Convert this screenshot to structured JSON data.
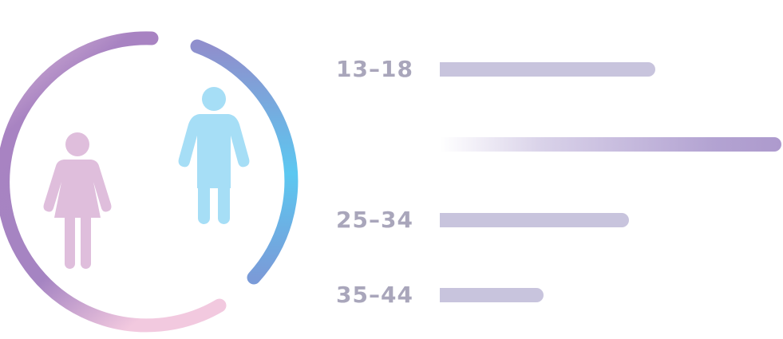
{
  "chart_data": {
    "type": "bar",
    "orientation": "horizontal",
    "categories": [
      "13-18",
      "",
      "25-34",
      "35-44"
    ],
    "category_labels": [
      "13–18",
      "",
      "25–34",
      "35–44"
    ],
    "values": [
      58,
      92,
      51,
      28
    ],
    "xlim": [
      0,
      92
    ],
    "highlighted_index": 1,
    "colors": {
      "bar": "#c8c4dd",
      "bar_highlight": "#ad9acd",
      "label": "#a9a6bb"
    },
    "grid": false,
    "legend": "none"
  },
  "illustration": {
    "icons": [
      "female-icon",
      "male-icon"
    ],
    "colors": {
      "female": "#dfbedc",
      "male": "#a6def6",
      "ring_female": "#a784c2",
      "ring_male": "#5cc8f1"
    }
  }
}
